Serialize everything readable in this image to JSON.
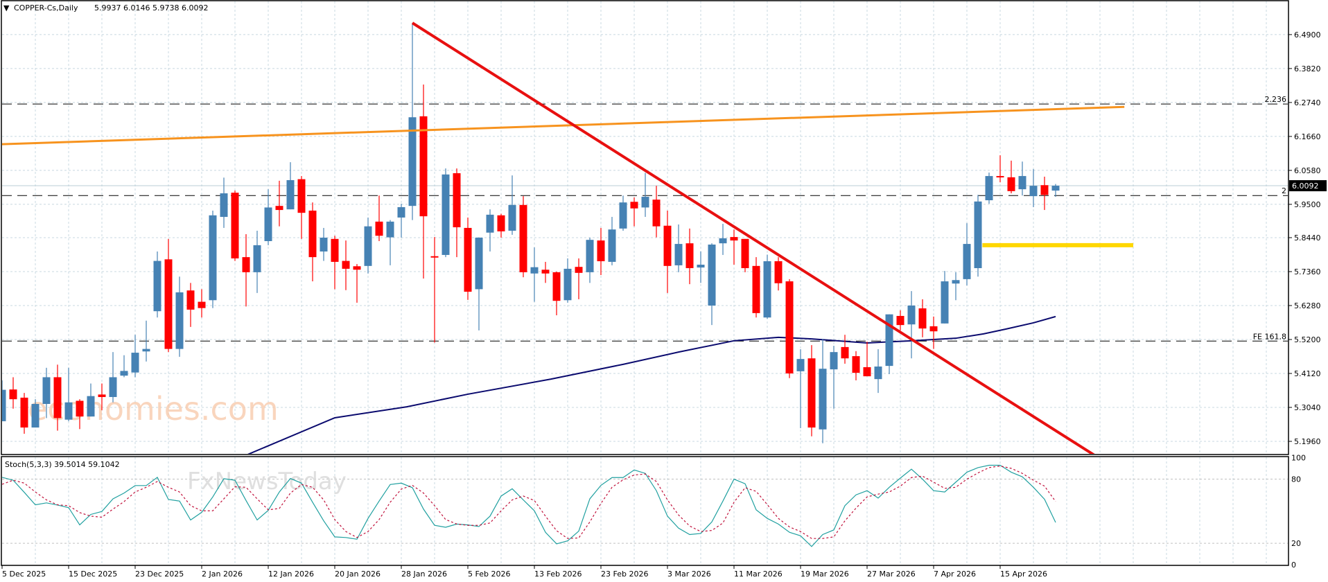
{
  "header": {
    "menu_glyph": "▼",
    "symbol": "COPPER-Cs,Daily",
    "ohlc": "5.9937 6.0146 5.9738 6.0092"
  },
  "indicator": {
    "label": "Stoch(5,3,3) 39.5014 59.1042"
  },
  "watermarks": {
    "primary": "economies.com",
    "secondary": "FxNewsToday"
  },
  "colors": {
    "bull": "#4682B4",
    "bear": "#FF0000",
    "trendline": "#E81010",
    "resistance_line": "#F7931E",
    "support_zone": "#FFD700",
    "moving_average": "#0A0A6E",
    "stoch_main": "#20A0A0",
    "stoch_signal": "#C0103A",
    "grid": "#C8D8E0"
  },
  "chart_data": [
    {
      "type": "candlestick",
      "title": "COPPER-Cs, Daily",
      "price_axis": {
        "range": [
          5.15,
          6.56
        ],
        "ticks": [
          "6.4900",
          "6.3820",
          "6.2740",
          "6.1660",
          "6.0580",
          "5.9500",
          "5.8440",
          "5.7360",
          "5.6280",
          "5.5200",
          "5.4120",
          "5.3040",
          "5.1960"
        ]
      },
      "date_axis": {
        "ticks": [
          {
            "bar": 0,
            "label": "5 Dec 2025"
          },
          {
            "bar": 6,
            "label": "15 Dec 2025"
          },
          {
            "bar": 12,
            "label": "23 Dec 2025"
          },
          {
            "bar": 18,
            "label": "2 Jan 2026"
          },
          {
            "bar": 24,
            "label": "12 Jan 2026"
          },
          {
            "bar": 30,
            "label": "20 Jan 2026"
          },
          {
            "bar": 36,
            "label": "28 Jan 2026"
          },
          {
            "bar": 42,
            "label": "5 Feb 2026"
          },
          {
            "bar": 48,
            "label": "13 Feb 2026"
          },
          {
            "bar": 54,
            "label": "23 Feb 2026"
          },
          {
            "bar": 60,
            "label": "3 Mar 2026"
          },
          {
            "bar": 66,
            "label": "11 Mar 2026"
          },
          {
            "bar": 72,
            "label": "19 Mar 2026"
          },
          {
            "bar": 78,
            "label": "27 Mar 2026"
          },
          {
            "bar": 84,
            "label": "7 Apr 2026"
          },
          {
            "bar": 90,
            "label": "15 Apr 2026"
          }
        ]
      },
      "ohlc_fields": [
        "open",
        "high",
        "low",
        "close"
      ],
      "ohlc": [
        [
          5.26,
          5.39,
          5.26,
          5.36
        ],
        [
          5.361,
          5.4,
          5.3,
          5.33
        ],
        [
          5.335,
          5.35,
          5.22,
          5.24
        ],
        [
          5.24,
          5.33,
          5.24,
          5.315
        ],
        [
          5.315,
          5.43,
          5.27,
          5.4
        ],
        [
          5.4,
          5.44,
          5.23,
          5.27
        ],
        [
          5.265,
          5.43,
          5.26,
          5.32
        ],
        [
          5.325,
          5.33,
          5.235,
          5.275
        ],
        [
          5.275,
          5.38,
          5.275,
          5.34
        ],
        [
          5.345,
          5.38,
          5.295,
          5.337
        ],
        [
          5.337,
          5.48,
          5.32,
          5.4
        ],
        [
          5.405,
          5.47,
          5.4,
          5.42
        ],
        [
          5.415,
          5.535,
          5.4,
          5.478
        ],
        [
          5.482,
          5.58,
          5.45,
          5.49
        ],
        [
          5.61,
          5.8,
          5.59,
          5.77
        ],
        [
          5.775,
          5.84,
          5.48,
          5.49
        ],
        [
          5.49,
          5.72,
          5.465,
          5.67
        ],
        [
          5.676,
          5.7,
          5.56,
          5.615
        ],
        [
          5.64,
          5.68,
          5.59,
          5.62
        ],
        [
          5.645,
          5.93,
          5.62,
          5.915
        ],
        [
          5.91,
          6.035,
          5.875,
          5.985
        ],
        [
          5.987,
          5.994,
          5.77,
          5.778
        ],
        [
          5.782,
          5.855,
          5.625,
          5.734
        ],
        [
          5.734,
          5.866,
          5.668,
          5.82
        ],
        [
          5.833,
          5.998,
          5.82,
          5.94
        ],
        [
          5.945,
          6.025,
          5.88,
          5.932
        ],
        [
          5.934,
          6.084,
          5.934,
          6.027
        ],
        [
          6.03,
          6.04,
          5.84,
          5.923
        ],
        [
          5.93,
          5.956,
          5.705,
          5.782
        ],
        [
          5.8,
          5.875,
          5.77,
          5.844
        ],
        [
          5.84,
          5.85,
          5.68,
          5.767
        ],
        [
          5.77,
          5.835,
          5.677,
          5.745
        ],
        [
          5.753,
          5.76,
          5.637,
          5.742
        ],
        [
          5.754,
          5.908,
          5.73,
          5.88
        ],
        [
          5.895,
          5.978,
          5.833,
          5.85
        ],
        [
          5.845,
          5.9,
          5.756,
          5.895
        ],
        [
          5.908,
          5.952,
          5.844,
          5.941
        ],
        [
          5.945,
          6.527,
          5.9,
          6.227
        ],
        [
          6.23,
          6.331,
          5.714,
          5.912
        ],
        [
          5.785,
          5.846,
          5.51,
          5.781
        ],
        [
          5.789,
          6.064,
          5.782,
          6.045
        ],
        [
          6.049,
          6.064,
          5.782,
          5.877
        ],
        [
          5.875,
          5.908,
          5.646,
          5.672
        ],
        [
          5.68,
          5.845,
          5.549,
          5.844
        ],
        [
          5.86,
          5.934,
          5.8,
          5.917
        ],
        [
          5.915,
          5.92,
          5.844,
          5.864
        ],
        [
          5.866,
          6.042,
          5.853,
          5.948
        ],
        [
          5.948,
          5.976,
          5.718,
          5.734
        ],
        [
          5.73,
          5.813,
          5.64,
          5.75
        ],
        [
          5.742,
          5.767,
          5.7,
          5.73
        ],
        [
          5.734,
          5.736,
          5.597,
          5.643
        ],
        [
          5.645,
          5.778,
          5.637,
          5.745
        ],
        [
          5.751,
          5.778,
          5.648,
          5.732
        ],
        [
          5.734,
          5.844,
          5.7,
          5.837
        ],
        [
          5.835,
          5.875,
          5.725,
          5.769
        ],
        [
          5.767,
          5.91,
          5.756,
          5.87
        ],
        [
          5.873,
          5.978,
          5.866,
          5.956
        ],
        [
          5.958,
          5.972,
          5.88,
          5.937
        ],
        [
          5.94,
          6.05,
          5.91,
          5.974
        ],
        [
          5.965,
          6.009,
          5.845,
          5.88
        ],
        [
          5.882,
          5.93,
          5.668,
          5.754
        ],
        [
          5.756,
          5.886,
          5.734,
          5.824
        ],
        [
          5.826,
          5.873,
          5.696,
          5.747
        ],
        [
          5.749,
          5.8,
          5.7,
          5.758
        ],
        [
          5.628,
          5.826,
          5.566,
          5.822
        ],
        [
          5.826,
          5.888,
          5.789,
          5.842
        ],
        [
          5.846,
          5.87,
          5.758,
          5.835
        ],
        [
          5.84,
          5.84,
          5.734,
          5.747
        ],
        [
          5.754,
          5.782,
          5.59,
          5.604
        ],
        [
          5.59,
          5.79,
          5.586,
          5.769
        ],
        [
          5.769,
          5.782,
          5.676,
          5.699
        ],
        [
          5.705,
          5.712,
          5.397,
          5.412
        ],
        [
          5.419,
          5.489,
          5.238,
          5.458
        ],
        [
          5.46,
          5.502,
          5.212,
          5.24
        ],
        [
          5.234,
          5.522,
          5.19,
          5.427
        ],
        [
          5.425,
          5.5,
          5.3,
          5.48
        ],
        [
          5.496,
          5.535,
          5.443,
          5.46
        ],
        [
          5.467,
          5.483,
          5.39,
          5.414
        ],
        [
          5.432,
          5.513,
          5.403,
          5.403
        ],
        [
          5.394,
          5.489,
          5.35,
          5.434
        ],
        [
          5.436,
          5.6,
          5.41,
          5.6
        ],
        [
          5.595,
          5.613,
          5.549,
          5.566
        ],
        [
          5.568,
          5.674,
          5.46,
          5.628
        ],
        [
          5.619,
          5.648,
          5.527,
          5.555
        ],
        [
          5.562,
          5.593,
          5.49,
          5.546
        ],
        [
          5.571,
          5.738,
          5.571,
          5.705
        ],
        [
          5.698,
          5.734,
          5.645,
          5.709
        ],
        [
          5.712,
          5.89,
          5.692,
          5.824
        ],
        [
          5.747,
          5.98,
          5.72,
          5.959
        ],
        [
          5.963,
          6.051,
          5.952,
          6.04
        ],
        [
          6.04,
          6.106,
          6.02,
          6.036
        ],
        [
          6.036,
          6.089,
          5.985,
          5.992
        ],
        [
          5.998,
          6.086,
          5.978,
          6.04
        ],
        [
          5.976,
          6.062,
          5.941,
          6.009
        ],
        [
          6.011,
          6.038,
          5.932,
          5.98
        ],
        [
          5.9937,
          6.0146,
          5.9738,
          6.0092
        ]
      ],
      "moving_average": [
        [
          21,
          5.13
        ],
        [
          22,
          5.152
        ],
        [
          30,
          5.271
        ],
        [
          36.5,
          5.306
        ],
        [
          42,
          5.346
        ],
        [
          49.5,
          5.394
        ],
        [
          56,
          5.441
        ],
        [
          61,
          5.48
        ],
        [
          66,
          5.516
        ],
        [
          70,
          5.527
        ],
        [
          73,
          5.522
        ],
        [
          78,
          5.509
        ],
        [
          82,
          5.516
        ],
        [
          84,
          5.52
        ],
        [
          86,
          5.524
        ],
        [
          88.5,
          5.538
        ],
        [
          90.5,
          5.553
        ],
        [
          93,
          5.573
        ],
        [
          95,
          5.593
        ]
      ],
      "current_price": {
        "value": 6.0092,
        "label": "6.0092"
      },
      "levels": [
        {
          "price": 6.269,
          "label": "2.236"
        },
        {
          "price": 5.978,
          "label": "2"
        },
        {
          "price": 5.515,
          "label": "FE 161.8"
        }
      ],
      "trendlines": [
        {
          "name": "falling-trendline",
          "from": [
            37,
            6.527
          ],
          "to": [
            98.5,
            5.152
          ]
        },
        {
          "name": "rising-resistance-line",
          "from": [
            -0.2,
            6.141
          ],
          "to": [
            101.2,
            6.26
          ]
        }
      ],
      "support_zone": {
        "price": 5.82,
        "from_bar": 88.4,
        "to_bar": 102
      }
    },
    {
      "type": "line",
      "title": "Stoch(5,3,3)",
      "ylim": [
        0,
        100
      ],
      "y_ticks": [
        "100",
        "80",
        "20",
        "0"
      ],
      "levels": [
        80,
        20
      ],
      "series": [
        {
          "name": "%K",
          "values": [
            81.7,
            79,
            67.7,
            56,
            57.8,
            55.8,
            53.4,
            37.2,
            47,
            49.8,
            61.6,
            67,
            74,
            74,
            81.7,
            61,
            59.5,
            41.8,
            49,
            63.4,
            80.4,
            79,
            60,
            41.8,
            50.8,
            68,
            80.6,
            76.3,
            58.4,
            41,
            26,
            25.4,
            23.8,
            43.3,
            59.5,
            75,
            76.3,
            72,
            52,
            36.8,
            35,
            38,
            37.2,
            35.7,
            45.4,
            64.2,
            71,
            60.6,
            50.4,
            30.3,
            19.5,
            22.3,
            31.4,
            61.6,
            74.2,
            81.5,
            81.5,
            88.6,
            85.4,
            69.2,
            45.4,
            34.2,
            28.2,
            29.2,
            40,
            59.5,
            80,
            75.7,
            51.3,
            43.3,
            38,
            30.3,
            27,
            17,
            28.2,
            32.5,
            55.2,
            65.3,
            69.2,
            62.3,
            72.4,
            81,
            89.3,
            80,
            69.2,
            68,
            77.2,
            86.5,
            90.8,
            93,
            93,
            86.5,
            82.2,
            72.4,
            61.2,
            39.5
          ]
        },
        {
          "name": "%D",
          "values": [
            75.2,
            79,
            76.3,
            68,
            60.6,
            56,
            55.2,
            48.7,
            45.4,
            44.4,
            52,
            59,
            68,
            72.4,
            77.8,
            72.4,
            68,
            55.2,
            50.4,
            50.4,
            61.6,
            72.9,
            72.4,
            61.6,
            51.3,
            52.6,
            67,
            75,
            72.4,
            60.6,
            42.2,
            31,
            25.4,
            31,
            42.2,
            58.4,
            70.7,
            74.2,
            67,
            55.2,
            42.2,
            38,
            36.8,
            36.8,
            39,
            50.4,
            60.6,
            64.2,
            60,
            45.4,
            31.8,
            24.5,
            25,
            40,
            57.3,
            72.4,
            79.4,
            83.9,
            84.8,
            77.8,
            60.6,
            46.5,
            36.2,
            31,
            32,
            39,
            58.4,
            72,
            68.6,
            56.2,
            43.3,
            35.3,
            31,
            24.5,
            24.5,
            26,
            41,
            52.9,
            63.4,
            66,
            68,
            73.5,
            81.5,
            82.8,
            77.2,
            71.4,
            72.4,
            80,
            85.8,
            90.8,
            92.3,
            90.1,
            85.4,
            79,
            73.5,
            59.1
          ]
        }
      ]
    }
  ]
}
